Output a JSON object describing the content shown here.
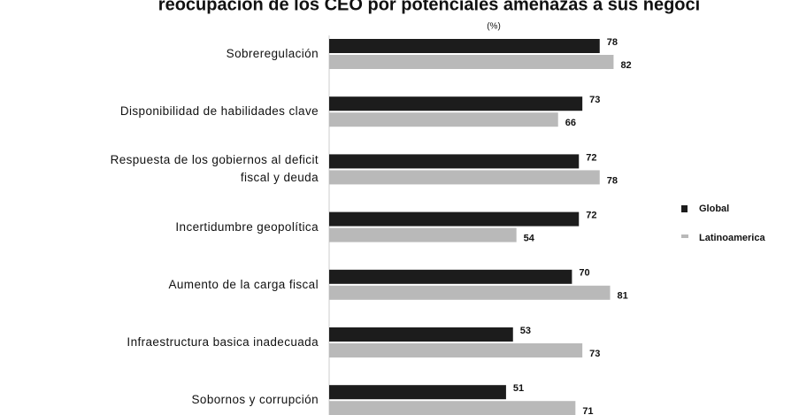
{
  "chart_data": {
    "type": "bar",
    "orientation": "horizontal",
    "title": "reocupación de los CEO por potenciales amenazas a sus negoci",
    "subtitle": "(%)",
    "categories": [
      "Sobreregulación",
      "Disponibilidad de habilidades clave",
      "Respuesta de los gobiernos al deficit\nfiscal y deuda",
      "Incertidumbre geopolítica",
      "Aumento de la carga fiscal",
      "Infraestructura basica inadecuada",
      "Sobornos y corrupción"
    ],
    "series": [
      {
        "name": "Global",
        "color": "#1c1c1c",
        "values": [
          78,
          73,
          72,
          72,
          70,
          53,
          51
        ]
      },
      {
        "name": "Latinoamerica",
        "color": "#b9b9b9",
        "values": [
          82,
          66,
          78,
          54,
          81,
          73,
          71
        ]
      }
    ],
    "xlim": [
      0,
      100
    ]
  }
}
